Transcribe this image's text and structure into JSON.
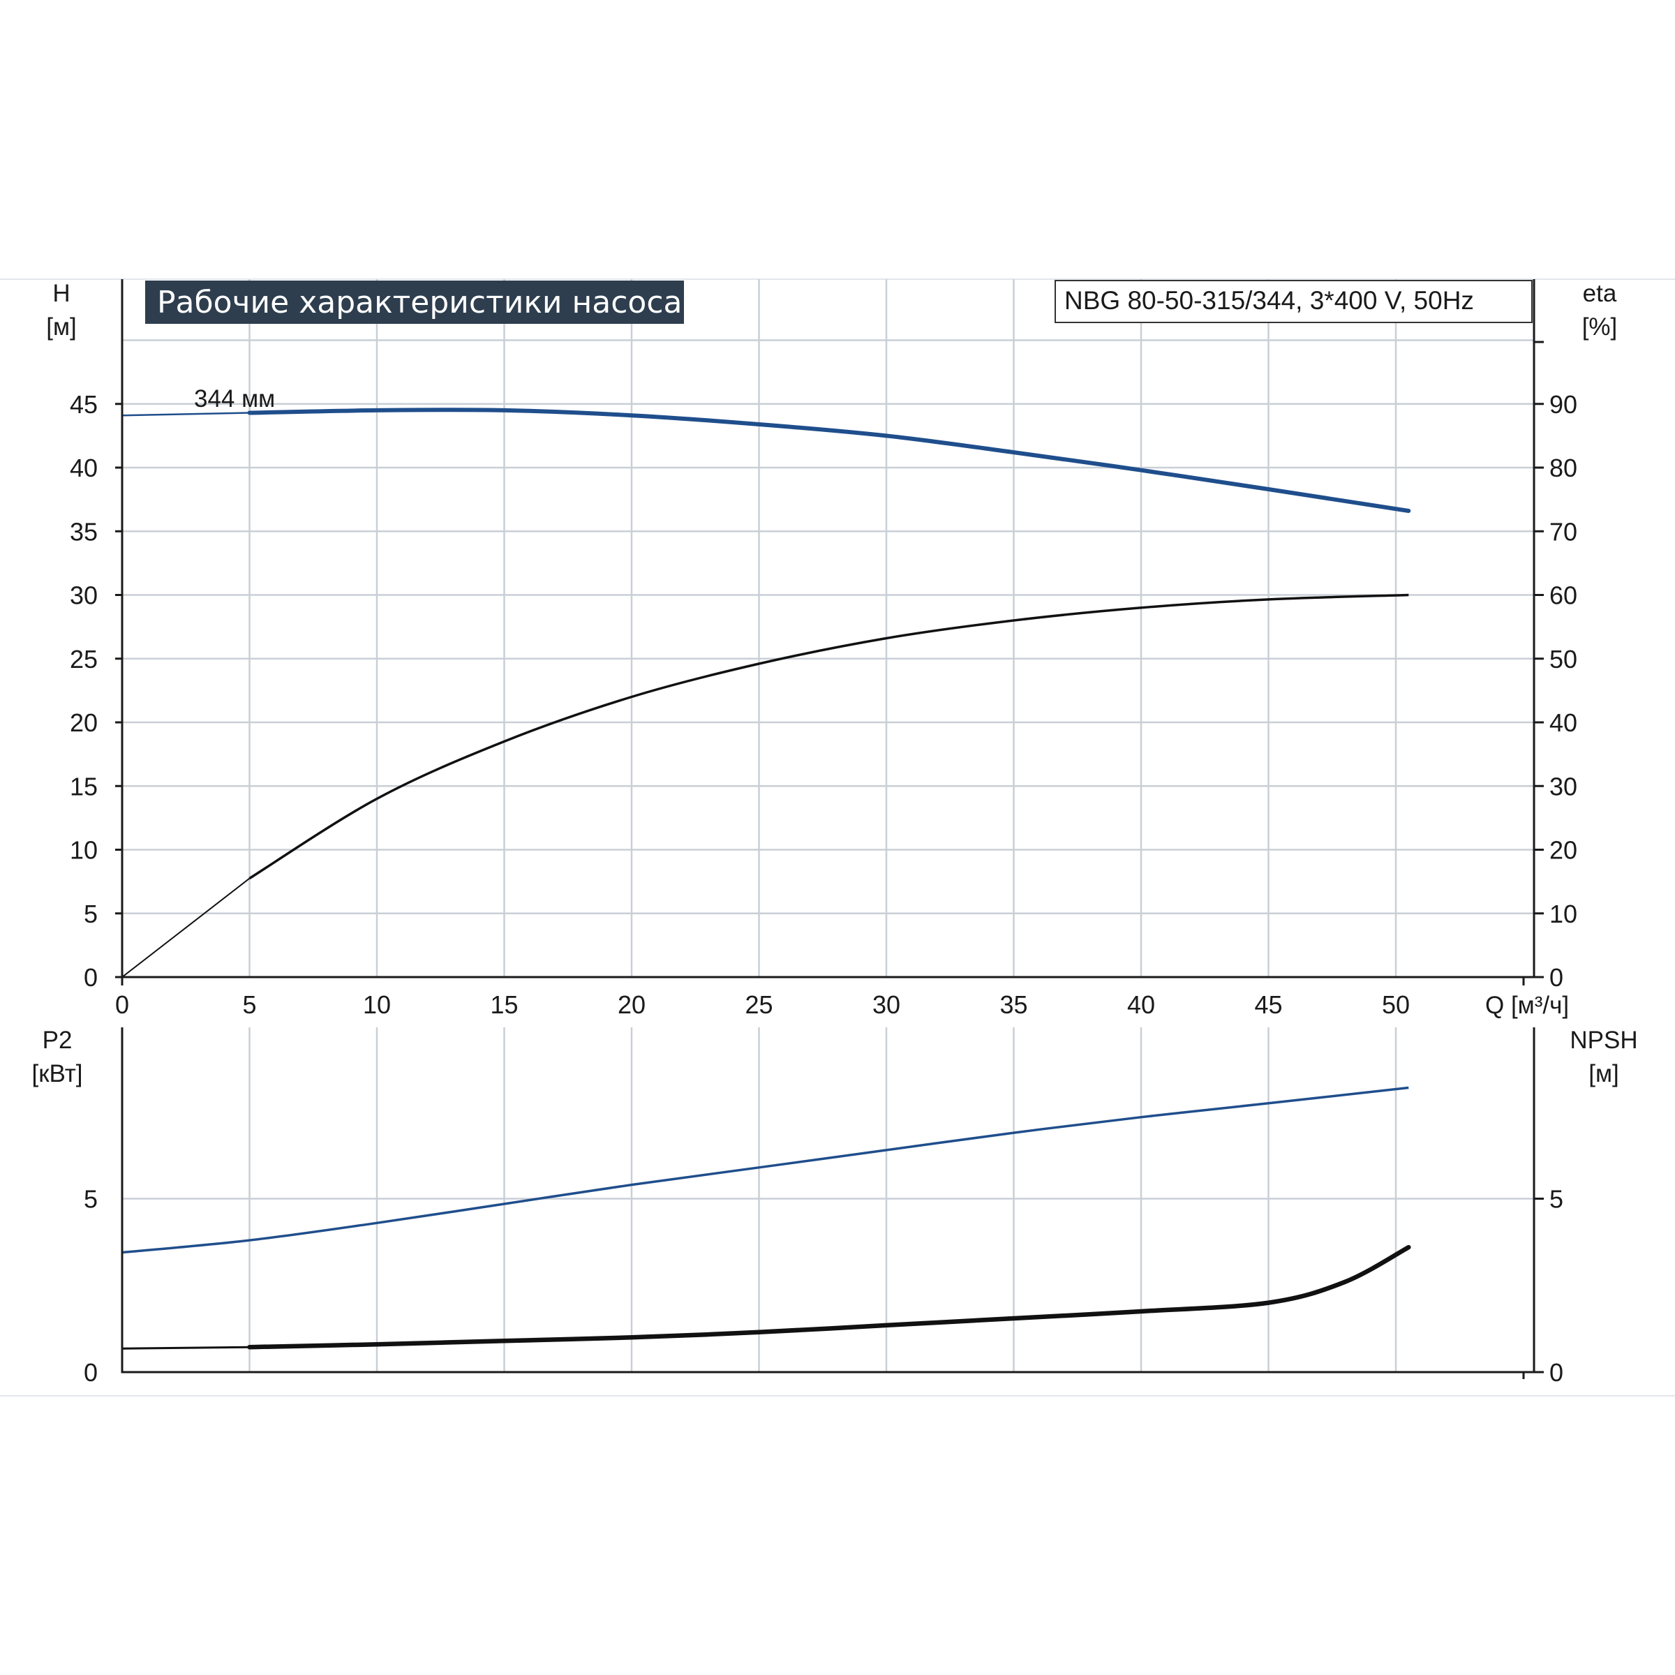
{
  "title": "Рабочие характеристики насоса",
  "model": "NBG 80-50-315/344, 3*400 V, 50Hz",
  "chart_data": [
    {
      "type": "line",
      "name": "upper",
      "x_label": "Q [м³/ч]",
      "x_ticks": [
        "0",
        "5",
        "10",
        "15",
        "20",
        "25",
        "30",
        "35",
        "40",
        "45",
        "50"
      ],
      "xlim": [
        0,
        55
      ],
      "y_label_left": {
        "name": "H",
        "unit": "[м]"
      },
      "y_ticks_left": [
        "0",
        "5",
        "10",
        "15",
        "20",
        "25",
        "30",
        "35",
        "40",
        "45"
      ],
      "ylim_left": [
        0,
        50
      ],
      "y_label_right": {
        "name": "eta",
        "unit": "[%]"
      },
      "y_ticks_right": [
        "0",
        "10",
        "20",
        "30",
        "40",
        "50",
        "60",
        "70",
        "80",
        "90"
      ],
      "ylim_right": [
        0,
        100
      ],
      "grid": true,
      "curve_annotation": "344 мм",
      "series": [
        {
          "axis": "left",
          "color": "#1f4e8c",
          "x": [
            0,
            5,
            10,
            15,
            20,
            25,
            30,
            35,
            40,
            45,
            50.5
          ],
          "y": [
            44.1,
            44.3,
            44.5,
            44.5,
            44.1,
            43.4,
            42.5,
            41.2,
            39.8,
            38.3,
            36.6
          ]
        },
        {
          "axis": "right",
          "color": "#111111",
          "x": [
            0,
            5,
            10,
            15,
            20,
            25,
            30,
            35,
            40,
            45,
            50.5
          ],
          "y": [
            0,
            15.5,
            28,
            37,
            44,
            49.2,
            53.2,
            56,
            58,
            59.3,
            60
          ]
        }
      ]
    },
    {
      "type": "line",
      "name": "lower",
      "y_label_left": {
        "name": "P2",
        "unit": "[кВт]"
      },
      "y_ticks_left": [
        "0",
        "5"
      ],
      "ylim_left": [
        0,
        8.6
      ],
      "y_label_right": {
        "name": "NPSH",
        "unit": "[м]"
      },
      "y_ticks_right": [
        "0",
        "5"
      ],
      "ylim_right": [
        0,
        8.6
      ],
      "grid": true,
      "series": [
        {
          "axis": "left",
          "color": "#1f4e8c",
          "x": [
            0,
            5,
            10,
            15,
            20,
            25,
            30,
            35,
            40,
            45,
            50.5
          ],
          "y": [
            3.45,
            3.8,
            4.3,
            4.85,
            5.4,
            5.9,
            6.4,
            6.9,
            7.35,
            7.75,
            8.2
          ]
        },
        {
          "axis": "right",
          "color": "#111111",
          "x": [
            0,
            5,
            10,
            15,
            20,
            25,
            30,
            35,
            40,
            45,
            48,
            50.5
          ],
          "y": [
            0.68,
            0.72,
            0.8,
            0.9,
            1.0,
            1.15,
            1.35,
            1.55,
            1.75,
            2.0,
            2.6,
            3.6
          ]
        }
      ]
    }
  ]
}
